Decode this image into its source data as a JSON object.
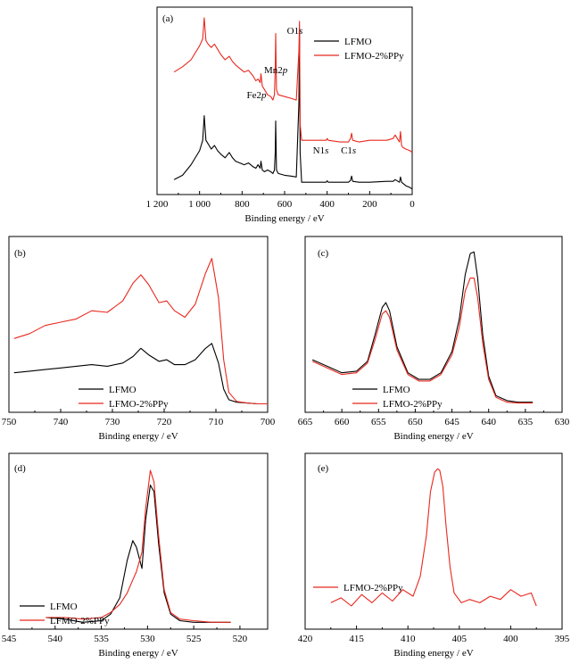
{
  "figure": {
    "palette": {
      "black_series": "#000000",
      "red_series": "#e8281e"
    },
    "panels": [
      {
        "id": "a",
        "label": "(a)",
        "xlabel": "Binding energy / eV",
        "xlim": [
          1200,
          0
        ],
        "ticks": [
          1200,
          1000,
          800,
          600,
          400,
          200,
          0
        ],
        "tick_labels": [
          "1 200",
          "1 000",
          "800",
          "600",
          "400",
          "200",
          "0"
        ],
        "legend": [
          "LFMO",
          "LFMO-2%PPy"
        ],
        "annotations": [
          {
            "text": "O1s",
            "x": 530
          },
          {
            "text": "Mn2p",
            "x": 642
          },
          {
            "text": "Fe2p",
            "x": 711
          },
          {
            "text": "N1s",
            "x": 400
          },
          {
            "text": "C1s",
            "x": 285
          }
        ]
      },
      {
        "id": "b",
        "label": "(b)",
        "xlabel": "Binding energy / eV",
        "xlim": [
          750,
          700
        ],
        "ticks": [
          750,
          740,
          730,
          720,
          710,
          700
        ],
        "tick_labels": [
          "750",
          "740",
          "730",
          "720",
          "710",
          "700"
        ],
        "legend": [
          "LFMO",
          "LFMO-2%PPy"
        ]
      },
      {
        "id": "c",
        "label": "(c)",
        "xlabel": "Binding energy / eV",
        "xlim": [
          665,
          630
        ],
        "ticks": [
          665,
          660,
          655,
          650,
          645,
          640,
          635,
          630
        ],
        "tick_labels": [
          "665",
          "660",
          "655",
          "650",
          "645",
          "640",
          "635",
          "630"
        ],
        "legend": [
          "LFMO",
          "LFMO-2%PPy"
        ]
      },
      {
        "id": "d",
        "label": "(d)",
        "xlabel": "Binding energy / eV",
        "xlim": [
          545,
          517
        ],
        "ticks": [
          545,
          540,
          535,
          530,
          525,
          520
        ],
        "tick_labels": [
          "545",
          "540",
          "535",
          "530",
          "525",
          "520"
        ],
        "legend": [
          "LFMO",
          "LFMO-2%PPy"
        ]
      },
      {
        "id": "e",
        "label": "(e)",
        "xlabel": "Binding energy / eV",
        "xlim": [
          420,
          395
        ],
        "ticks": [
          420,
          415,
          410,
          405,
          400,
          395
        ],
        "tick_labels": [
          "420",
          "415",
          "410",
          "405",
          "400",
          "395"
        ],
        "legend": [
          "LFMO-2%PPy"
        ]
      }
    ]
  },
  "chart_data": [
    {
      "panel": "a",
      "type": "line",
      "xlabel": "Binding energy / eV",
      "xlim": [
        1200,
        0
      ],
      "ylim": [
        0,
        1
      ],
      "grid": false,
      "legend_position": "top-right",
      "series": [
        {
          "name": "LFMO",
          "color": "#000000",
          "x": [
            1120,
            1080,
            1040,
            1000,
            985,
            978,
            970,
            960,
            945,
            930,
            915,
            900,
            880,
            860,
            845,
            830,
            810,
            790,
            770,
            750,
            735,
            725,
            715,
            711,
            705,
            695,
            680,
            665,
            655,
            648,
            644,
            642,
            638,
            630,
            600,
            570,
            545,
            533,
            530,
            527,
            520,
            500,
            450,
            405,
            400,
            395,
            340,
            300,
            290,
            285,
            280,
            250,
            200,
            120,
            90,
            80,
            60,
            55,
            50,
            45,
            30,
            10,
            0
          ],
          "y": [
            0.065,
            0.09,
            0.15,
            0.23,
            0.29,
            0.43,
            0.29,
            0.27,
            0.24,
            0.26,
            0.23,
            0.21,
            0.19,
            0.22,
            0.19,
            0.17,
            0.16,
            0.15,
            0.16,
            0.14,
            0.13,
            0.15,
            0.13,
            0.17,
            0.12,
            0.11,
            0.12,
            0.11,
            0.1,
            0.12,
            0.22,
            0.4,
            0.12,
            0.1,
            0.09,
            0.085,
            0.08,
            0.5,
            0.93,
            0.22,
            0.05,
            0.05,
            0.05,
            0.05,
            0.058,
            0.05,
            0.05,
            0.05,
            0.06,
            0.085,
            0.055,
            0.05,
            0.05,
            0.055,
            0.055,
            0.065,
            0.05,
            0.08,
            0.05,
            0.045,
            0.03,
            0.02,
            0.01
          ]
        },
        {
          "name": "LFMO-2%PPy",
          "color": "#e8281e",
          "x": [
            1120,
            1080,
            1040,
            1000,
            985,
            978,
            970,
            960,
            945,
            930,
            915,
            900,
            880,
            860,
            845,
            830,
            810,
            790,
            770,
            750,
            735,
            725,
            715,
            711,
            705,
            695,
            680,
            665,
            655,
            648,
            644,
            642,
            638,
            630,
            600,
            570,
            545,
            533,
            530,
            527,
            520,
            500,
            450,
            405,
            400,
            395,
            340,
            300,
            290,
            285,
            280,
            250,
            200,
            120,
            90,
            80,
            60,
            55,
            50,
            45,
            30,
            10,
            0
          ],
          "y": [
            0.68,
            0.71,
            0.75,
            0.83,
            0.87,
            0.99,
            0.86,
            0.84,
            0.82,
            0.84,
            0.81,
            0.78,
            0.75,
            0.77,
            0.74,
            0.72,
            0.7,
            0.68,
            0.69,
            0.66,
            0.63,
            0.64,
            0.62,
            0.67,
            0.6,
            0.58,
            0.55,
            0.54,
            0.52,
            0.55,
            0.7,
            0.9,
            0.58,
            0.55,
            0.54,
            0.53,
            0.52,
            0.8,
            0.97,
            0.38,
            0.29,
            0.29,
            0.29,
            0.29,
            0.3,
            0.29,
            0.28,
            0.28,
            0.3,
            0.33,
            0.29,
            0.28,
            0.29,
            0.29,
            0.3,
            0.32,
            0.28,
            0.34,
            0.26,
            0.25,
            0.24,
            0.23,
            0.22
          ]
        }
      ]
    },
    {
      "panel": "b",
      "type": "line",
      "xlabel": "Binding energy / eV",
      "xlim": [
        750,
        700
      ],
      "ylim": [
        0,
        1
      ],
      "grid": false,
      "legend_position": "bottom-left",
      "series": [
        {
          "name": "LFMO",
          "color": "#000000",
          "x": [
            749,
            746,
            743,
            740,
            737,
            734,
            731,
            728,
            726,
            724.5,
            723,
            721,
            719.5,
            718,
            716,
            714,
            712,
            710.8,
            709.5,
            708.5,
            707.5,
            706,
            704,
            702,
            700
          ],
          "y": [
            0.22,
            0.23,
            0.24,
            0.25,
            0.26,
            0.27,
            0.26,
            0.28,
            0.32,
            0.37,
            0.33,
            0.29,
            0.3,
            0.27,
            0.27,
            0.3,
            0.37,
            0.4,
            0.28,
            0.12,
            0.055,
            0.04,
            0.035,
            0.03,
            0.03
          ]
        },
        {
          "name": "LFMO-2%PPy",
          "color": "#e8281e",
          "x": [
            749,
            746,
            743,
            740,
            737,
            734,
            731,
            728,
            726,
            724.5,
            723,
            721,
            719.5,
            718,
            716,
            714,
            712,
            710.8,
            709.5,
            708.5,
            707.5,
            706,
            704,
            702,
            700
          ],
          "y": [
            0.43,
            0.46,
            0.51,
            0.53,
            0.55,
            0.6,
            0.59,
            0.66,
            0.77,
            0.82,
            0.76,
            0.65,
            0.66,
            0.6,
            0.56,
            0.64,
            0.83,
            0.92,
            0.68,
            0.3,
            0.1,
            0.045,
            0.035,
            0.03,
            0.03
          ]
        }
      ]
    },
    {
      "panel": "c",
      "type": "line",
      "xlabel": "Binding energy / eV",
      "xlim": [
        665,
        630
      ],
      "ylim": [
        0,
        1
      ],
      "grid": false,
      "legend_position": "bottom-center",
      "series": [
        {
          "name": "LFMO",
          "color": "#000000",
          "x": [
            664,
            662,
            660,
            658,
            656.5,
            655.5,
            654.5,
            654,
            653.5,
            652.5,
            651,
            649.5,
            648,
            646.5,
            645,
            644,
            643.2,
            642.5,
            642,
            641.5,
            640.8,
            640,
            639,
            637.5,
            636,
            634
          ],
          "y": [
            0.3,
            0.26,
            0.22,
            0.23,
            0.29,
            0.45,
            0.62,
            0.65,
            0.6,
            0.38,
            0.22,
            0.18,
            0.18,
            0.22,
            0.35,
            0.55,
            0.82,
            0.95,
            0.96,
            0.8,
            0.45,
            0.2,
            0.08,
            0.05,
            0.04,
            0.04
          ]
        },
        {
          "name": "LFMO-2%PPy",
          "color": "#e8281e",
          "x": [
            664,
            662,
            660,
            658,
            656.5,
            655.5,
            654.5,
            654,
            653.5,
            652.5,
            651,
            649.5,
            648,
            646.5,
            645,
            644,
            643.2,
            642.5,
            642,
            641.5,
            640.8,
            640,
            639,
            637.5,
            636,
            634
          ],
          "y": [
            0.29,
            0.25,
            0.21,
            0.22,
            0.28,
            0.42,
            0.58,
            0.6,
            0.56,
            0.36,
            0.21,
            0.17,
            0.17,
            0.21,
            0.33,
            0.5,
            0.72,
            0.8,
            0.8,
            0.68,
            0.4,
            0.18,
            0.07,
            0.04,
            0.035,
            0.035
          ]
        }
      ]
    },
    {
      "panel": "d",
      "type": "line",
      "xlabel": "Binding energy / eV",
      "xlim": [
        545,
        517
      ],
      "ylim": [
        0,
        1
      ],
      "grid": false,
      "legend_position": "bottom-left",
      "series": [
        {
          "name": "LFMO",
          "color": "#000000",
          "x": [
            541,
            539,
            537,
            535,
            534,
            533,
            532.2,
            531.6,
            531.2,
            530.6,
            530.2,
            529.7,
            529.3,
            528.8,
            528.2,
            527.5,
            526.5,
            525,
            523,
            521
          ],
          "y": [
            0.05,
            0.04,
            0.02,
            0.03,
            0.07,
            0.17,
            0.4,
            0.52,
            0.48,
            0.35,
            0.65,
            0.86,
            0.82,
            0.5,
            0.2,
            0.07,
            0.03,
            0.02,
            0.02,
            0.02
          ]
        },
        {
          "name": "LFMO-2%PPy",
          "color": "#e8281e",
          "x": [
            541,
            539,
            537,
            535,
            534,
            533,
            532.2,
            531.6,
            531.2,
            530.6,
            530.2,
            529.7,
            529.3,
            528.8,
            528.2,
            527.5,
            526.5,
            525,
            523,
            521
          ],
          "y": [
            0.05,
            0.05,
            0.04,
            0.05,
            0.08,
            0.13,
            0.2,
            0.28,
            0.33,
            0.45,
            0.72,
            0.95,
            0.88,
            0.55,
            0.22,
            0.08,
            0.04,
            0.03,
            0.02,
            0.02
          ]
        }
      ]
    },
    {
      "panel": "e",
      "type": "line",
      "xlabel": "Binding energy / eV",
      "xlim": [
        420,
        395
      ],
      "ylim": [
        0,
        1
      ],
      "grid": false,
      "legend_position": "center-left",
      "series": [
        {
          "name": "LFMO-2%PPy",
          "color": "#e8281e",
          "x": [
            417.5,
            416.5,
            415.5,
            414.5,
            413.5,
            412.5,
            411.5,
            410.5,
            409.5,
            408.8,
            408.2,
            407.8,
            407.4,
            407.1,
            406.9,
            406.6,
            406.3,
            405.9,
            405.5,
            404.8,
            404,
            403,
            402,
            401,
            400,
            399,
            398,
            397.5
          ],
          "y": [
            0.14,
            0.17,
            0.12,
            0.19,
            0.14,
            0.2,
            0.15,
            0.22,
            0.18,
            0.3,
            0.55,
            0.82,
            0.94,
            0.96,
            0.95,
            0.85,
            0.62,
            0.36,
            0.2,
            0.14,
            0.16,
            0.14,
            0.18,
            0.16,
            0.22,
            0.18,
            0.2,
            0.12
          ]
        }
      ]
    }
  ]
}
